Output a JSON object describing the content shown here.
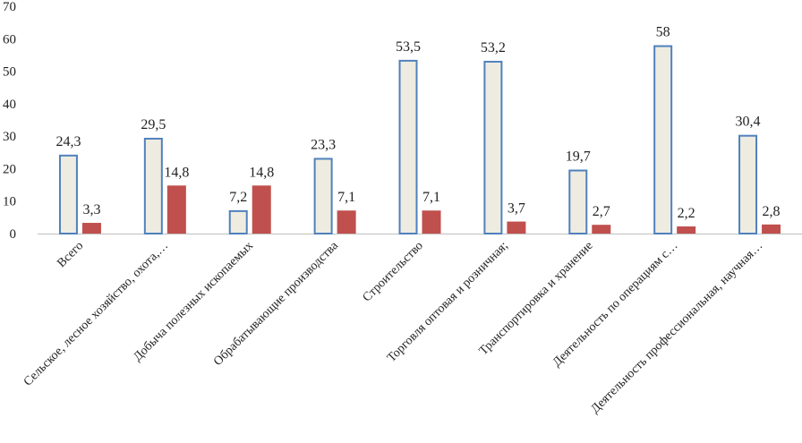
{
  "chart_data": {
    "type": "bar",
    "categories": [
      "Всего",
      "Сельское, лесное хозяйство, охота,…",
      "Добыча полезных  ископаемых",
      "Обрабатывающие производства",
      "Строительство",
      "Торговля оптовая и розничная;",
      "Транспортировка и хранение",
      "Деятельность по операциям с…",
      "Деятельность профессиональная, научная…"
    ],
    "series": [
      {
        "values": [
          24.3,
          29.5,
          7.2,
          23.3,
          53.5,
          53.2,
          19.7,
          58,
          30.4
        ],
        "labels": [
          "24,3",
          "29,5",
          "7,2",
          "23,3",
          "53,5",
          "53,2",
          "19,7",
          "58",
          "30,4"
        ],
        "fill": "#eeece1",
        "stroke": "#4f81bd"
      },
      {
        "values": [
          3.3,
          14.8,
          14.8,
          7.1,
          7.1,
          3.7,
          2.7,
          2.2,
          2.8
        ],
        "labels": [
          "3,3",
          "14,8",
          "14,8",
          "7,1",
          "7,1",
          "3,7",
          "2,7",
          "2,2",
          "2,8"
        ],
        "fill": "#c0504d"
      }
    ],
    "yticks": [
      "0",
      "10",
      "20",
      "30",
      "40",
      "50",
      "60",
      "70"
    ],
    "ylim": [
      0,
      70
    ],
    "grid": false,
    "legend": "none"
  }
}
